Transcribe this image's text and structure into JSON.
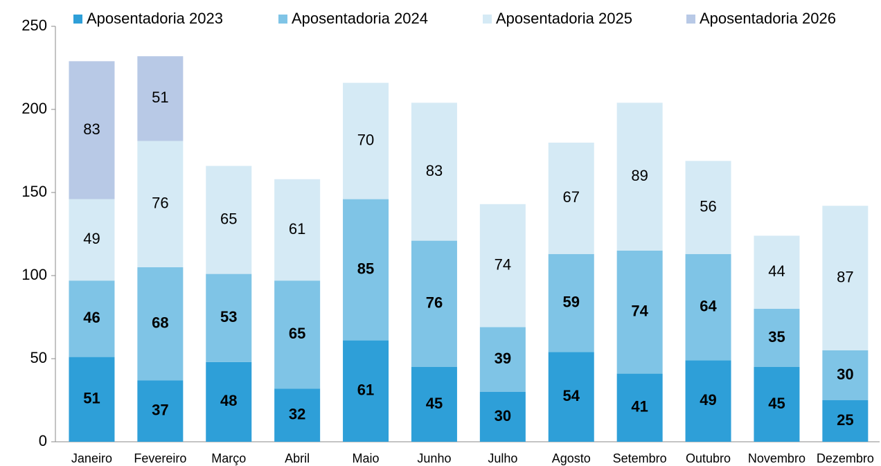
{
  "chart_data": {
    "type": "stacked_bar",
    "categories": [
      "Janeiro",
      "Fevereiro",
      "Março",
      "Abril",
      "Maio",
      "Junho",
      "Julho",
      "Agosto",
      "Setembro",
      "Outubro",
      "Novembro",
      "Dezembro"
    ],
    "series": [
      {
        "name": "Aposentadoria 2023",
        "color": "#2e9fd8",
        "values": [
          51,
          37,
          48,
          32,
          61,
          45,
          30,
          54,
          41,
          49,
          45,
          25
        ]
      },
      {
        "name": "Aposentadoria 2024",
        "color": "#7fc4e6",
        "values": [
          46,
          68,
          53,
          65,
          85,
          76,
          39,
          59,
          74,
          64,
          35,
          30
        ]
      },
      {
        "name": "Aposentadoria 2025",
        "color": "#d5eaf5",
        "values": [
          49,
          76,
          65,
          61,
          70,
          83,
          74,
          67,
          89,
          56,
          44,
          87
        ]
      },
      {
        "name": "Aposentadoria 2026",
        "color": "#b8c9e6",
        "values": [
          83,
          51,
          null,
          null,
          null,
          null,
          null,
          null,
          null,
          null,
          null,
          null
        ]
      }
    ],
    "ylim": [
      0,
      250
    ],
    "yticks": [
      0,
      50,
      100,
      150,
      200,
      250
    ],
    "grid": false,
    "legend": "top"
  }
}
